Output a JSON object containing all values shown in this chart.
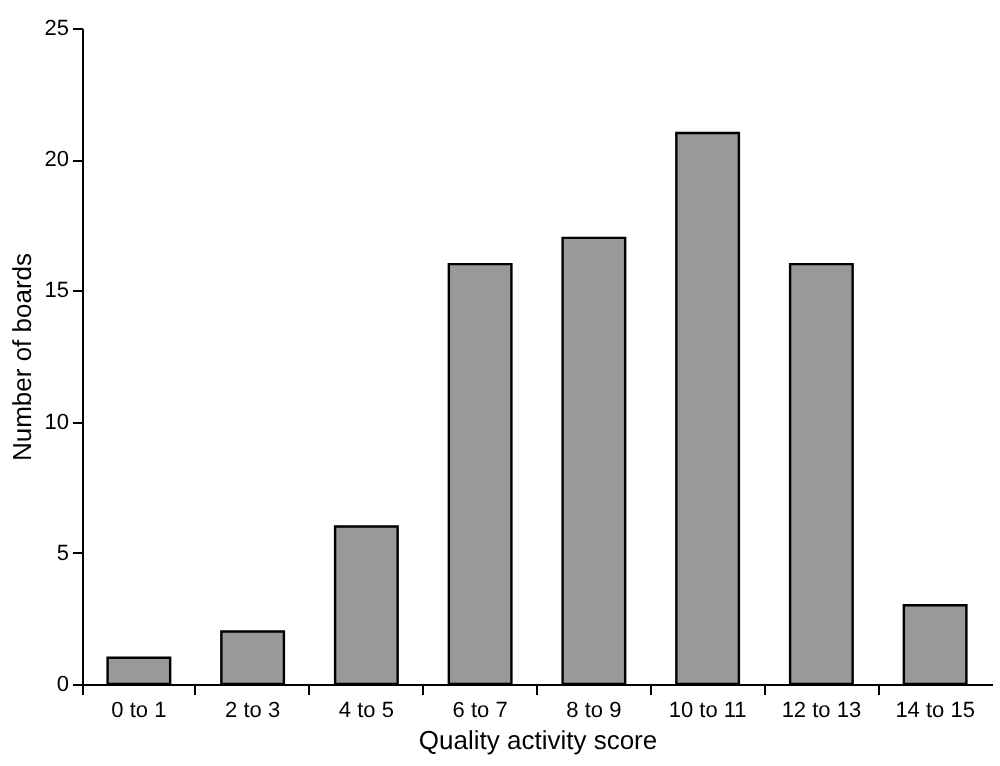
{
  "chart_data": {
    "type": "bar",
    "xlabel": "Quality activity score",
    "ylabel": "Number of boards",
    "categories": [
      "0 to 1",
      "2 to 3",
      "4 to 5",
      "6 to 7",
      "8 to 9",
      "10 to 11",
      "12 to 13",
      "14 to 15"
    ],
    "values": [
      1,
      2,
      6,
      16,
      17,
      21,
      16,
      3
    ],
    "color": "#999999",
    "ylim": [
      0,
      25
    ],
    "yticks": [
      0,
      5,
      10,
      15,
      20,
      25
    ],
    "grid": false
  }
}
